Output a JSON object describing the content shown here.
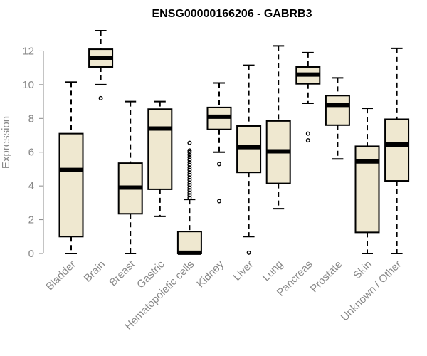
{
  "chart_data": {
    "type": "box",
    "title": "ENSG00000166206 - GABRB3",
    "ylabel": "Expression",
    "xlabel": "",
    "ylim": [
      0,
      13.2
    ],
    "yticks": [
      0,
      2,
      4,
      6,
      8,
      10,
      12
    ],
    "grid": false,
    "box_fill": "#efe8d0",
    "categories": [
      "Bladder",
      "Brain",
      "Breast",
      "Gastric",
      "Hematopoietic cells",
      "Kidney",
      "Liver",
      "Lung",
      "Pancreas",
      "Prostate",
      "Skin",
      "Unknown / Other"
    ],
    "boxes": [
      {
        "min": 0.0,
        "q1": 1.0,
        "median": 4.95,
        "q3": 7.1,
        "max": 10.15,
        "outliers": []
      },
      {
        "min": 10.0,
        "q1": 11.05,
        "median": 11.6,
        "q3": 12.1,
        "max": 13.2,
        "outliers": [
          9.2
        ]
      },
      {
        "min": 0.0,
        "q1": 2.35,
        "median": 3.9,
        "q3": 5.35,
        "max": 9.0,
        "outliers": []
      },
      {
        "min": 2.2,
        "q1": 3.8,
        "median": 7.4,
        "q3": 8.55,
        "max": 9.0,
        "outliers": []
      },
      {
        "min": 0.0,
        "q1": 0.0,
        "median": 0.05,
        "q3": 1.3,
        "max": 3.2,
        "outliers": [
          3.3,
          3.45,
          3.6,
          3.75,
          3.9,
          4.05,
          4.2,
          4.35,
          4.5,
          4.65,
          4.8,
          4.95,
          5.1,
          5.25,
          5.4,
          5.55,
          5.7,
          5.85,
          6.0,
          6.1,
          6.55
        ]
      },
      {
        "min": 6.0,
        "q1": 7.35,
        "median": 8.1,
        "q3": 8.65,
        "max": 10.1,
        "outliers": [
          5.3,
          3.1
        ]
      },
      {
        "min": 1.0,
        "q1": 4.8,
        "median": 6.3,
        "q3": 7.55,
        "max": 11.15,
        "outliers": [
          0.05
        ]
      },
      {
        "min": 2.65,
        "q1": 4.15,
        "median": 6.05,
        "q3": 7.85,
        "max": 12.3,
        "outliers": []
      },
      {
        "min": 8.9,
        "q1": 10.05,
        "median": 10.6,
        "q3": 11.05,
        "max": 11.9,
        "outliers": [
          7.1,
          6.7
        ]
      },
      {
        "min": 5.6,
        "q1": 7.6,
        "median": 8.8,
        "q3": 9.35,
        "max": 10.4,
        "outliers": []
      },
      {
        "min": 0.0,
        "q1": 1.25,
        "median": 5.45,
        "q3": 6.35,
        "max": 8.6,
        "outliers": []
      },
      {
        "min": 0.0,
        "q1": 4.3,
        "median": 6.45,
        "q3": 7.95,
        "max": 12.15,
        "outliers": []
      }
    ]
  }
}
